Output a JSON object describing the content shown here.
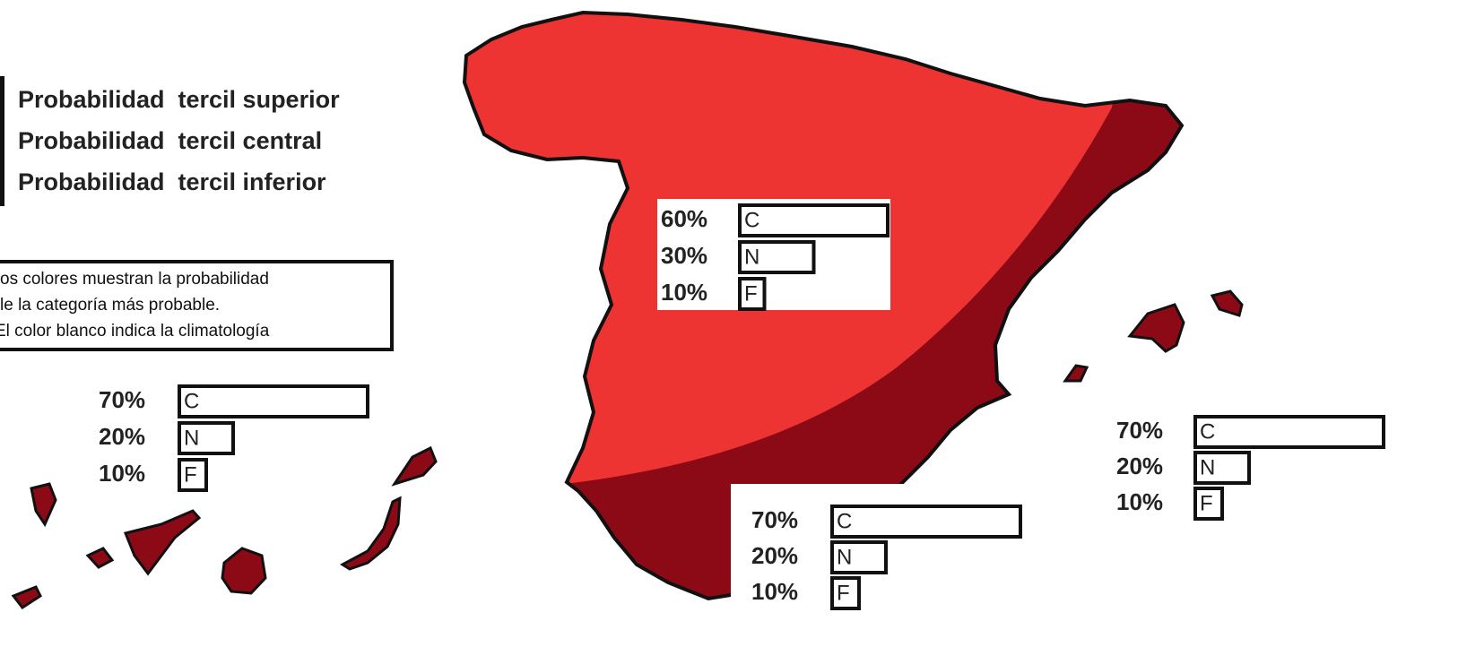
{
  "legend": {
    "items": [
      "Probabilidad  tercil superior",
      "Probabilidad  tercil central",
      "Probabilidad  tercil inferior"
    ]
  },
  "note": {
    "lines": [
      "os colores muestran la probabilidad",
      "le la categoría más probable.",
      "El color blanco indica la climatología"
    ]
  },
  "panels": [
    {
      "categories": [
        "C",
        "N",
        "F"
      ],
      "values": [
        60,
        30,
        10
      ],
      "value_labels": [
        "60%",
        "30%",
        "10%"
      ]
    },
    {
      "categories": [
        "C",
        "N",
        "F"
      ],
      "values": [
        70,
        20,
        10
      ],
      "value_labels": [
        "70%",
        "20%",
        "10%"
      ]
    },
    {
      "categories": [
        "C",
        "N",
        "F"
      ],
      "values": [
        70,
        20,
        10
      ],
      "value_labels": [
        "70%",
        "20%",
        "10%"
      ]
    },
    {
      "categories": [
        "C",
        "N",
        "F"
      ],
      "values": [
        70,
        20,
        10
      ],
      "value_labels": [
        "70%",
        "20%",
        "10%"
      ]
    }
  ]
}
